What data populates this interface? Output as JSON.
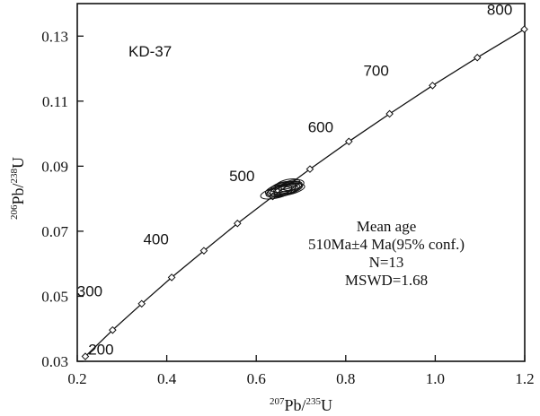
{
  "chart_data": {
    "type": "scatter",
    "sample_label": "KD-37",
    "xlabel": {
      "sup1": "207",
      "main1": "Pb/",
      "sup2": "235",
      "main2": "U"
    },
    "ylabel": {
      "sup1": "206",
      "main1": "Pb/",
      "sup2": "238",
      "main2": "U"
    },
    "xlim": [
      0.2,
      1.2
    ],
    "ylim": [
      0.03,
      0.14
    ],
    "x_ticks": [
      "0.2",
      "0.4",
      "0.6",
      "0.8",
      "1.0",
      "1.2"
    ],
    "x_tick_values": [
      0.2,
      0.4,
      0.6,
      0.8,
      1.0,
      1.2
    ],
    "y_ticks": [
      "0.03",
      "0.05",
      "0.07",
      "0.09",
      "0.11",
      "0.13"
    ],
    "y_tick_values": [
      0.03,
      0.05,
      0.07,
      0.09,
      0.11,
      0.13
    ],
    "concordia": {
      "ages": [
        200,
        250,
        300,
        350,
        400,
        450,
        500,
        550,
        600,
        650,
        700,
        750,
        800
      ],
      "x": [
        0.218,
        0.279,
        0.344,
        0.411,
        0.483,
        0.558,
        0.637,
        0.72,
        0.807,
        0.898,
        0.994,
        1.094,
        1.199
      ],
      "y": [
        0.0315,
        0.0396,
        0.0477,
        0.0558,
        0.064,
        0.0724,
        0.0807,
        0.0891,
        0.0976,
        0.1061,
        0.1148,
        0.1234,
        0.1321
      ],
      "labeled_ages": [
        "200",
        "300",
        "400",
        "500",
        "600",
        "700",
        "800"
      ]
    },
    "analyses": [
      {
        "x": 0.645,
        "y": 0.0818,
        "rx": 0.036,
        "ry": 0.0016
      },
      {
        "x": 0.655,
        "y": 0.0822,
        "rx": 0.034,
        "ry": 0.0015
      },
      {
        "x": 0.662,
        "y": 0.0825,
        "rx": 0.032,
        "ry": 0.0016
      },
      {
        "x": 0.668,
        "y": 0.083,
        "rx": 0.03,
        "ry": 0.0015
      },
      {
        "x": 0.672,
        "y": 0.0834,
        "rx": 0.03,
        "ry": 0.0016
      },
      {
        "x": 0.66,
        "y": 0.0836,
        "rx": 0.028,
        "ry": 0.0015
      },
      {
        "x": 0.676,
        "y": 0.0838,
        "rx": 0.027,
        "ry": 0.0014
      },
      {
        "x": 0.664,
        "y": 0.0828,
        "rx": 0.04,
        "ry": 0.0017
      },
      {
        "x": 0.65,
        "y": 0.0826,
        "rx": 0.03,
        "ry": 0.0016
      },
      {
        "x": 0.681,
        "y": 0.0842,
        "rx": 0.026,
        "ry": 0.0015
      },
      {
        "x": 0.67,
        "y": 0.0845,
        "rx": 0.028,
        "ry": 0.0014
      },
      {
        "x": 0.658,
        "y": 0.0832,
        "rx": 0.033,
        "ry": 0.0016
      },
      {
        "x": 0.674,
        "y": 0.0828,
        "rx": 0.035,
        "ry": 0.0015
      }
    ],
    "annotation": {
      "line1": "Mean age",
      "line2": "510Ma±4 Ma(95% conf.)",
      "line3": "N=13",
      "line4": "MSWD=1.68"
    }
  }
}
